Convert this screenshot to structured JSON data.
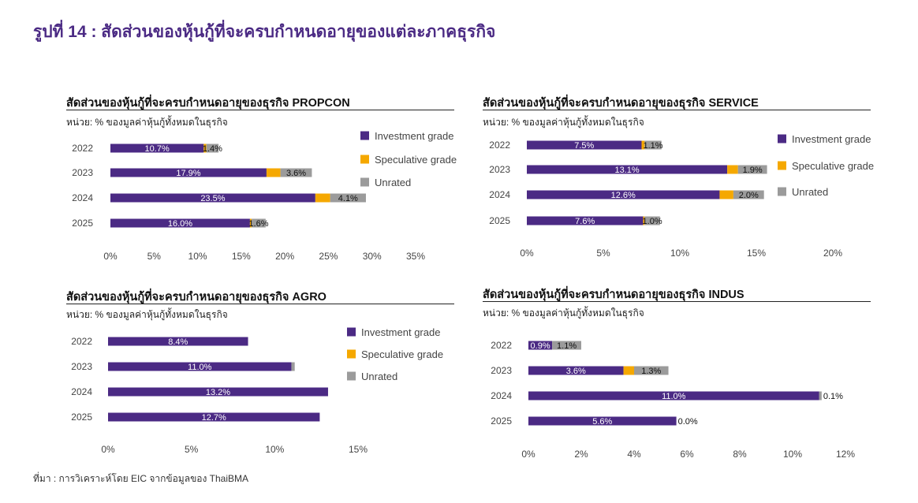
{
  "figure": {
    "title": "รูปที่ 14 : สัดส่วนของหุ้นกู้ที่จะครบกำหนดอายุของแต่ละภาคธุรกิจ",
    "source": "ที่มา : การวิเคราะห์โดย EIC จากข้อมูลของ ThaiBMA"
  },
  "colors": {
    "investment": "#4b2a84",
    "speculative": "#f5a800",
    "unrated": "#9b9b9b"
  },
  "chart_data": [
    {
      "type": "bar",
      "orientation": "horizontal",
      "stacked": true,
      "title": "สัดส่วนของหุ้นกู้ที่จะครบกำหนดอายุของธุรกิจ PROPCON",
      "subtitle": "หน่วย: % ของมูลค่าหุ้นกู้ทั้งหมดในธุรกิจ",
      "categories": [
        "2022",
        "2023",
        "2024",
        "2025"
      ],
      "xlim": [
        0,
        35
      ],
      "xticks": [
        "0%",
        "5%",
        "10%",
        "15%",
        "20%",
        "25%",
        "30%",
        "35%"
      ],
      "legend": "right",
      "series": [
        {
          "name": "Investment grade",
          "values": [
            10.7,
            17.9,
            23.5,
            16.0
          ],
          "labels": [
            "10.7%",
            "17.9%",
            "23.5%",
            "16.0%"
          ]
        },
        {
          "name": "Speculative grade",
          "values": [
            0.3,
            1.6,
            1.7,
            0.2
          ],
          "labels": [
            "",
            "",
            "",
            ""
          ]
        },
        {
          "name": "Unrated",
          "values": [
            1.4,
            3.6,
            4.1,
            1.6
          ],
          "labels": [
            "1.4%",
            "3.6%",
            "4.1%",
            "1.6%"
          ]
        }
      ]
    },
    {
      "type": "bar",
      "orientation": "horizontal",
      "stacked": true,
      "title": "สัดส่วนของหุ้นกู้ที่จะครบกำหนดอายุของธุรกิจ SERVICE",
      "subtitle": "หน่วย: % ของมูลค่าหุ้นกู้ทั้งหมดในธุรกิจ",
      "categories": [
        "2022",
        "2023",
        "2024",
        "2025"
      ],
      "xlim": [
        0,
        20
      ],
      "xticks": [
        "0%",
        "5%",
        "10%",
        "15%",
        "20%"
      ],
      "legend": "right",
      "series": [
        {
          "name": "Investment grade",
          "values": [
            7.5,
            13.1,
            12.6,
            7.6
          ],
          "labels": [
            "7.5%",
            "13.1%",
            "12.6%",
            "7.6%"
          ]
        },
        {
          "name": "Speculative grade",
          "values": [
            0.2,
            0.7,
            0.9,
            0.1
          ],
          "labels": [
            "",
            "",
            "",
            ""
          ]
        },
        {
          "name": "Unrated",
          "values": [
            1.1,
            1.9,
            2.0,
            1.0
          ],
          "labels": [
            "1.1%",
            "1.9%",
            "2.0%",
            "1.0%"
          ]
        }
      ]
    },
    {
      "type": "bar",
      "orientation": "horizontal",
      "stacked": true,
      "title": "สัดส่วนของหุ้นกู้ที่จะครบกำหนดอายุของธุรกิจ AGRO",
      "subtitle": "หน่วย: % ของมูลค่าหุ้นกู้ทั้งหมดในธุรกิจ",
      "categories": [
        "2022",
        "2023",
        "2024",
        "2025"
      ],
      "xlim": [
        0,
        15
      ],
      "xticks": [
        "0%",
        "5%",
        "10%",
        "15%"
      ],
      "legend": "right",
      "series": [
        {
          "name": "Investment grade",
          "values": [
            8.4,
            11.0,
            13.2,
            12.7
          ],
          "labels": [
            "8.4%",
            "11.0%",
            "13.2%",
            "12.7%"
          ]
        },
        {
          "name": "Speculative grade",
          "values": [
            0,
            0,
            0,
            0
          ],
          "labels": [
            "",
            "",
            "",
            ""
          ]
        },
        {
          "name": "Unrated",
          "values": [
            0,
            0.2,
            0,
            0
          ],
          "labels": [
            "",
            "",
            "",
            ""
          ]
        }
      ]
    },
    {
      "type": "bar",
      "orientation": "horizontal",
      "stacked": true,
      "title": "สัดส่วนของหุ้นกู้ที่จะครบกำหนดอายุของธุรกิจ INDUS",
      "subtitle": "หน่วย: % ของมูลค่าหุ้นกู้ทั้งหมดในธุรกิจ",
      "categories": [
        "2022",
        "2023",
        "2024",
        "2025"
      ],
      "xlim": [
        0,
        12
      ],
      "xticks": [
        "0%",
        "2%",
        "4%",
        "6%",
        "8%",
        "10%",
        "12%"
      ],
      "legend": "none",
      "series": [
        {
          "name": "Investment grade",
          "values": [
            0.9,
            3.6,
            11.0,
            5.6
          ],
          "labels": [
            "0.9%",
            "3.6%",
            "11.0%",
            "5.6%"
          ]
        },
        {
          "name": "Speculative grade",
          "values": [
            0,
            0.4,
            0,
            0
          ],
          "labels": [
            "",
            "",
            "",
            ""
          ]
        },
        {
          "name": "Unrated",
          "values": [
            1.1,
            1.3,
            0.1,
            0.0
          ],
          "labels": [
            "1.1%",
            "1.3%",
            "0.1%",
            "0.0%"
          ]
        }
      ]
    }
  ]
}
